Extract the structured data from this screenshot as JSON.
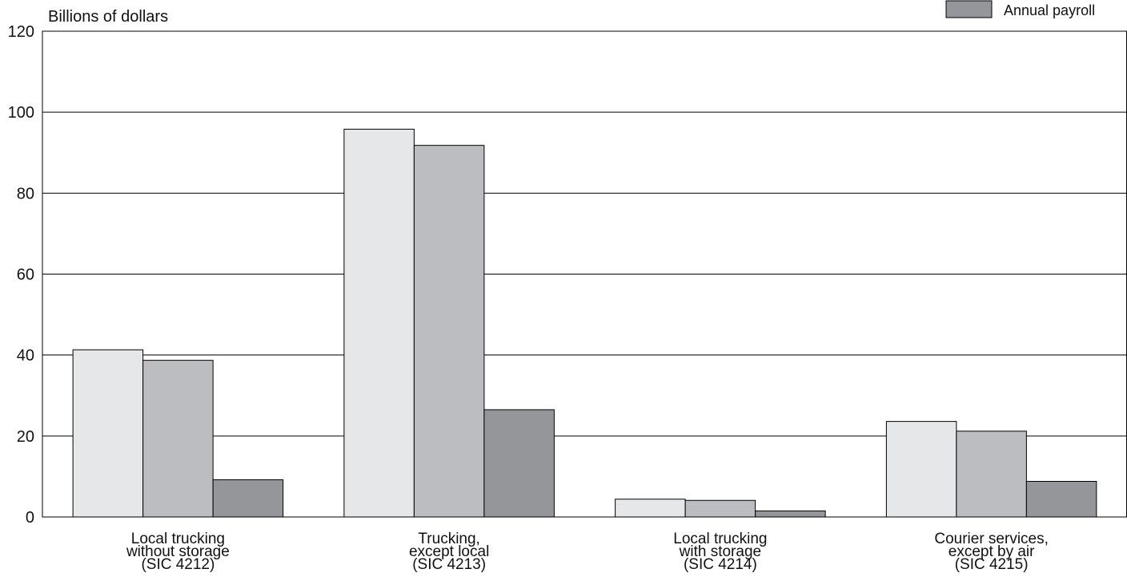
{
  "chart_data": {
    "type": "bar",
    "ylabel": "Billions of dollars",
    "ylim": [
      0,
      120
    ],
    "yticks": [
      0,
      20,
      40,
      60,
      80,
      100,
      120
    ],
    "grid": true,
    "legend_position": "top-right",
    "categories": [
      [
        "Local trucking",
        "without storage",
        "(SIC 4212)"
      ],
      [
        "Trucking,",
        "except local",
        "(SIC 4213)"
      ],
      [
        "Local trucking",
        "with storage",
        "(SIC 4214)"
      ],
      [
        "Courier services,",
        "except by air",
        "(SIC 4215)"
      ]
    ],
    "series": [
      {
        "values": [
          41.3,
          95.8,
          4.4,
          23.6
        ]
      },
      {
        "values": [
          38.7,
          91.8,
          4.1,
          21.2
        ]
      },
      {
        "name": "Annual payroll",
        "values": [
          9.2,
          26.5,
          1.5,
          8.8
        ]
      }
    ],
    "colors": [
      "#e6e7e8",
      "#bcbdc0",
      "#959699"
    ]
  }
}
